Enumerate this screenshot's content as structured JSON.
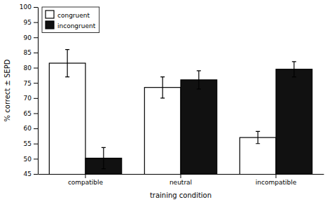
{
  "chart_data": {
    "type": "bar",
    "categories": [
      "compatible",
      "neutral",
      "incompatible"
    ],
    "series": [
      {
        "name": "congruent",
        "color": "#ffffff",
        "values": [
          81.5,
          73.5,
          57.0
        ],
        "errors": [
          4.5,
          3.5,
          2.0
        ]
      },
      {
        "name": "incongruent",
        "color": "#111111",
        "values": [
          50.2,
          76.0,
          79.5
        ],
        "errors": [
          3.5,
          3.0,
          2.5
        ]
      }
    ],
    "x_label": "training condition",
    "y_label": "% correct ± SEPD",
    "ylim": [
      45,
      100
    ],
    "yticks": [
      45,
      50,
      55,
      60,
      65,
      70,
      75,
      80,
      85,
      90,
      95,
      100
    ],
    "legend": "upper left",
    "grid": false
  }
}
